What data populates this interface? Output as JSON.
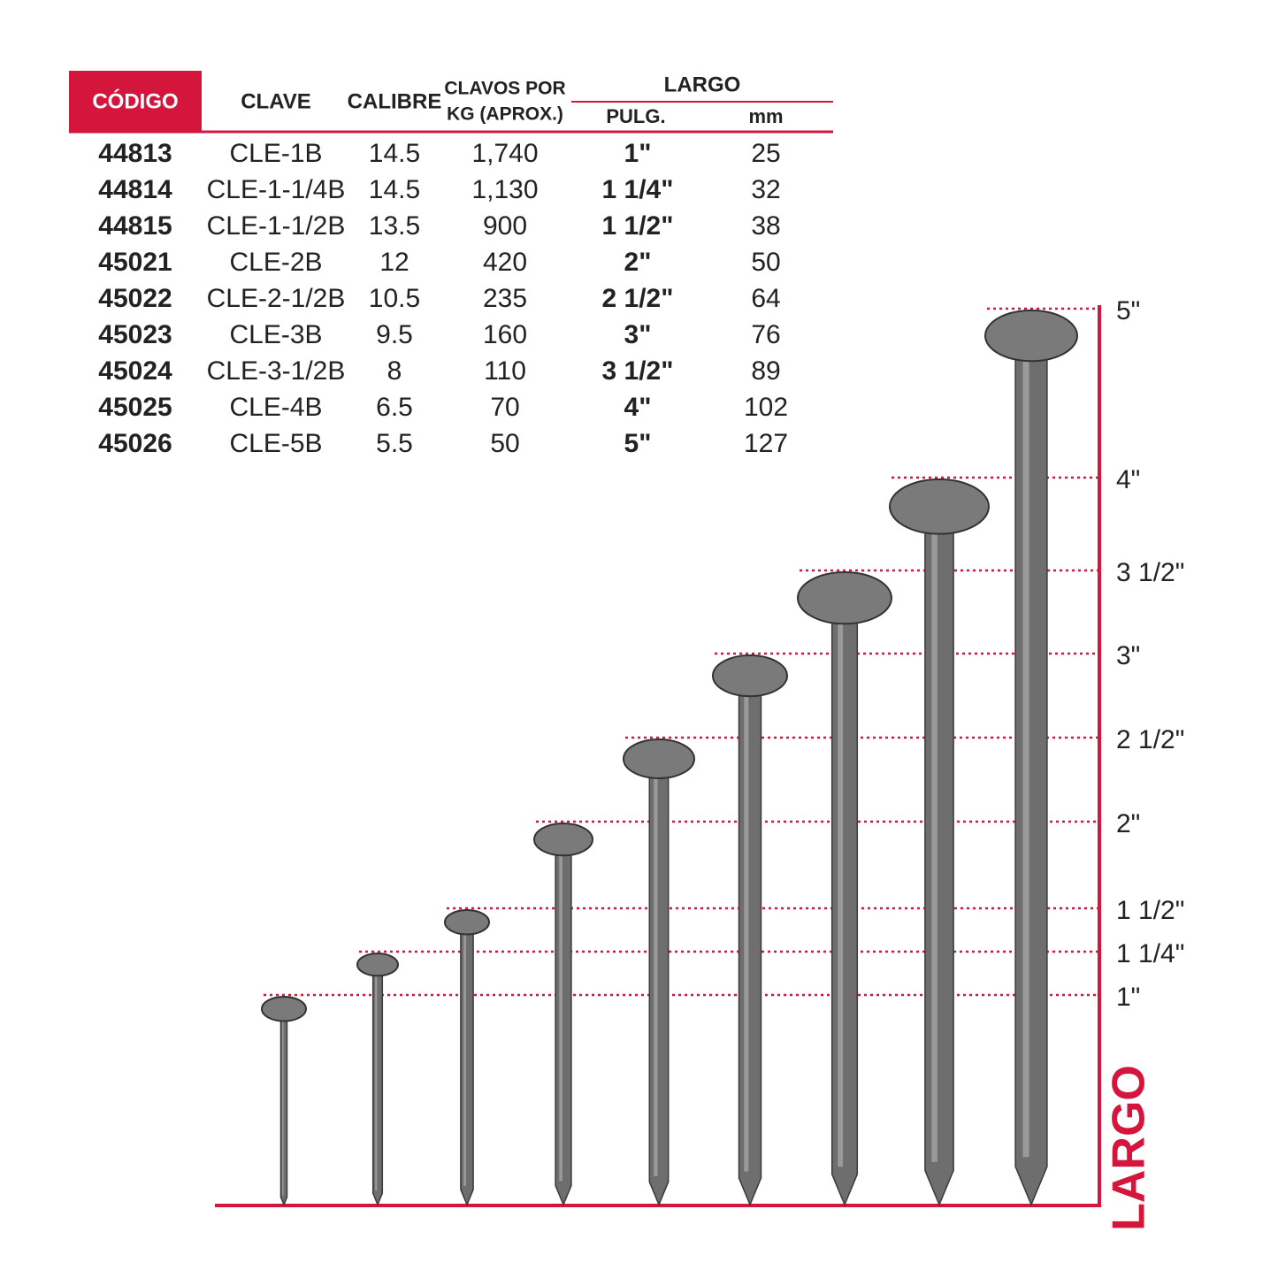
{
  "table": {
    "headers": {
      "codigo": "CÓDIGO",
      "clave": "CLAVE",
      "calibre": "CALIBRE",
      "clavos_por_kg": [
        "CLAVOS POR",
        "KG (APROX.)"
      ],
      "largo": "LARGO",
      "pulg": "PULG.",
      "mm": "mm"
    },
    "rows": [
      [
        "44813",
        "CLE-1B",
        "14.5",
        "1,740",
        "1\"",
        "25"
      ],
      [
        "44814",
        "CLE-1-1/4B",
        "14.5",
        "1,130",
        "1 1/4\"",
        "32"
      ],
      [
        "44815",
        "CLE-1-1/2B",
        "13.5",
        "900",
        "1 1/2\"",
        "38"
      ],
      [
        "45021",
        "CLE-2B",
        "12",
        "420",
        "2\"",
        "50"
      ],
      [
        "45022",
        "CLE-2-1/2B",
        "10.5",
        "235",
        "2 1/2\"",
        "64"
      ],
      [
        "45023",
        "CLE-3B",
        "9.5",
        "160",
        "3\"",
        "76"
      ],
      [
        "45024",
        "CLE-3-1/2B",
        "8",
        "110",
        "3 1/2\"",
        "89"
      ],
      [
        "45025",
        "CLE-4B",
        "6.5",
        "70",
        "4\"",
        "102"
      ],
      [
        "45026",
        "CLE-5B",
        "5.5",
        "50",
        "5\"",
        "127"
      ]
    ]
  },
  "scale": {
    "labels": [
      "5\"",
      "4\"",
      "3 1/2\"",
      "3\"",
      "2 1/2\"",
      "2\"",
      "1 1/2\"",
      "1 1/4\"",
      "1\""
    ],
    "title": "LARGO"
  }
}
